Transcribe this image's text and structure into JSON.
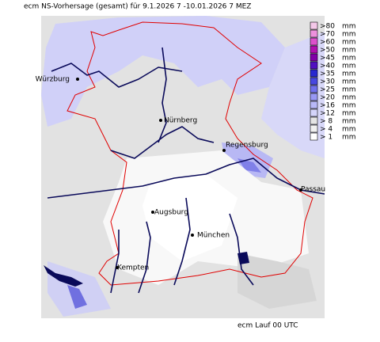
{
  "title": "ecm NS-Vorhersage (gesamt) für 9.1.2026 7 -10.01.2026 7 MEZ",
  "legend": [
    {
      "label": ">80",
      "unit": "mm",
      "color": "#f4c8e8"
    },
    {
      "label": ">70",
      "unit": "mm",
      "color": "#ec90dc"
    },
    {
      "label": ">60",
      "unit": "mm",
      "color": "#dc50cc"
    },
    {
      "label": ">50",
      "unit": "mm",
      "color": "#b010b0"
    },
    {
      "label": ">45",
      "unit": "mm",
      "color": "#8000a8"
    },
    {
      "label": ">40",
      "unit": "mm",
      "color": "#5010c0"
    },
    {
      "label": ">35",
      "unit": "mm",
      "color": "#2828d0"
    },
    {
      "label": ">30",
      "unit": "mm",
      "color": "#4848e0"
    },
    {
      "label": ">25",
      "unit": "mm",
      "color": "#7070ec"
    },
    {
      "label": ">20",
      "unit": "mm",
      "color": "#9898f4"
    },
    {
      "label": ">16",
      "unit": "mm",
      "color": "#b8b8f8"
    },
    {
      "label": ">12",
      "unit": "mm",
      "color": "#d4d4fa"
    },
    {
      "label": "> 8",
      "unit": "mm",
      "color": "#e4e4e4"
    },
    {
      "label": "> 4",
      "unit": "mm",
      "color": "#f0f0f0"
    },
    {
      "label": "> 1",
      "unit": "mm",
      "color": "#ffffff"
    }
  ],
  "cities": [
    {
      "name": "Würzburg"
    },
    {
      "name": "Nürnberg"
    },
    {
      "name": "Regensburg"
    },
    {
      "name": "Passau"
    },
    {
      "name": "Augsburg"
    },
    {
      "name": "München"
    },
    {
      "name": "Kempten"
    }
  ],
  "footer": "ecm Lauf 00 UTC"
}
